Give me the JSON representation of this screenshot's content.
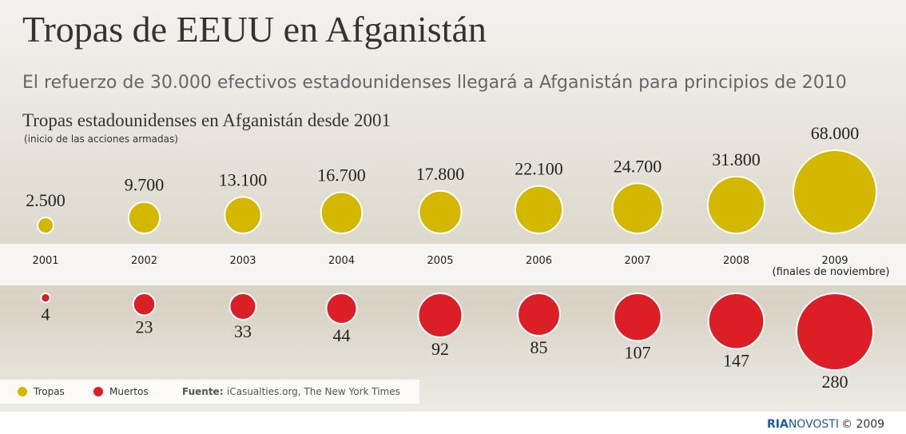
{
  "chart_data": {
    "type": "bubble",
    "title": "Tropas de EEUU en Afganistán",
    "subtitle": "El refuerzo de 30.000 efectivos estadounidenses llegará a Afganistán para principios de 2010",
    "chart_title": "Tropas estadounidenses en Afganistán desde 2001",
    "chart_subtitle": "(inicio de las acciones armadas)",
    "categories": [
      "2001",
      "2002",
      "2003",
      "2004",
      "2005",
      "2006",
      "2007",
      "2008",
      "2009"
    ],
    "annotation": "(finales de noviembre)",
    "series": [
      {
        "name": "Tropas",
        "color": "#d4b800",
        "values": [
          2500,
          9700,
          13100,
          16700,
          17800,
          22100,
          24700,
          31800,
          68000
        ],
        "value_labels": [
          "2.500",
          "9.700",
          "13.100",
          "16.700",
          "17.800",
          "22.100",
          "24.700",
          "31.800",
          "68.000"
        ]
      },
      {
        "name": "Muertos",
        "color": "#dc1f26",
        "values": [
          4,
          23,
          33,
          44,
          92,
          85,
          107,
          147,
          280
        ]
      }
    ],
    "source_label": "Fuente:",
    "source": "iCasualties.org, The New York Times",
    "credit_brand_1": "RIA",
    "credit_brand_2": "NOVOSTI",
    "credit_year": "© 2009"
  }
}
